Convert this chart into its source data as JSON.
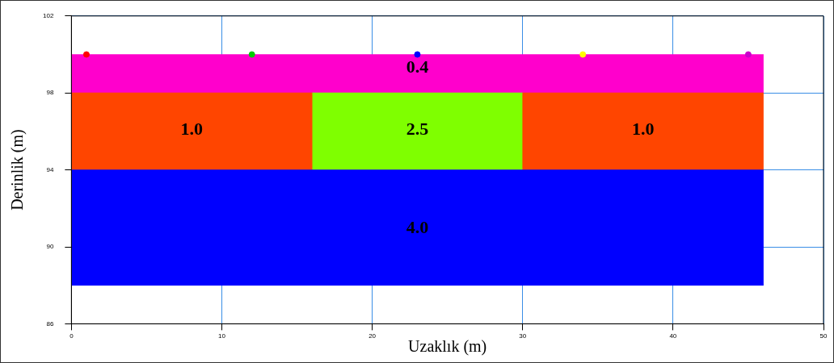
{
  "chart_data": {
    "type": "histogram",
    "xlabel": "Uzaklık (m)",
    "ylabel": "Derinlik (m)",
    "series": [
      {
        "color": "#0000ff",
        "bins": [
          0,
          46
        ],
        "base": [
          88
        ],
        "values": [
          6
        ]
      },
      {
        "color": "#ff4500",
        "bins": [
          0,
          16,
          30,
          46
        ],
        "base": [
          94,
          null,
          94
        ],
        "values": [
          4,
          null,
          4
        ]
      },
      {
        "color": "#7fff00",
        "bins": [
          16,
          30
        ],
        "base": [
          94
        ],
        "values": [
          4
        ]
      },
      {
        "color": "#ff00cc",
        "bins": [
          0,
          46
        ],
        "base": [
          98
        ],
        "values": [
          2
        ]
      },
      {
        "type": "scatter",
        "x": [
          1,
          12,
          23,
          34,
          45
        ],
        "values": [
          100,
          100,
          100,
          100,
          100
        ],
        "colors": [
          "#ff0000",
          "#00cc00",
          "#0000ff",
          "#ffff00",
          "#cc00cc"
        ]
      }
    ],
    "annotations": [
      "0.4",
      "1.0",
      "2.5",
      "1.0",
      "4.0"
    ],
    "xlim": [
      0,
      50
    ],
    "xticks": [
      0,
      10,
      20,
      30,
      40,
      50
    ],
    "ylim": [
      86,
      102
    ],
    "yticks": [
      86,
      90,
      94,
      98,
      102
    ],
    "grid": true,
    "legend": false,
    "marker": "circle"
  }
}
